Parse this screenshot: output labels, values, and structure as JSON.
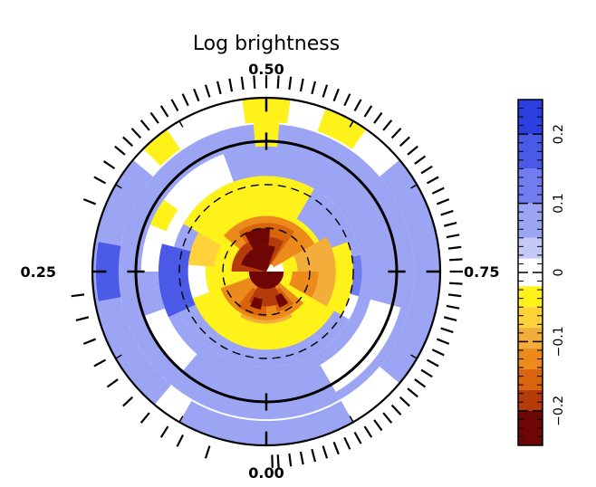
{
  "chart_data": {
    "type": "heatmap",
    "projection": "polar",
    "title": "Log brightness",
    "phase_labels": [
      {
        "text": "0.50",
        "angle_deg": 90
      },
      {
        "text": "0.25",
        "angle_deg": 180
      },
      {
        "text": "0.75",
        "angle_deg": 0
      },
      {
        "text": "0.00",
        "angle_deg": 270
      }
    ],
    "colorbar": {
      "orientation": "vertical",
      "position": "right",
      "range": [
        -0.25,
        0.25
      ],
      "tick_labels": [
        "0.2",
        "0.1",
        "0",
        "−0.1",
        "−0.2"
      ],
      "tick_values": [
        0.2,
        0.1,
        0.0,
        -0.1,
        -0.2
      ],
      "levels": [
        {
          "lo": 0.2,
          "hi": 0.25,
          "color": "#2b3fe0"
        },
        {
          "lo": 0.15,
          "hi": 0.2,
          "color": "#4a5ae6"
        },
        {
          "lo": 0.1,
          "hi": 0.15,
          "color": "#6f7df0"
        },
        {
          "lo": 0.05,
          "hi": 0.1,
          "color": "#9ca5f3"
        },
        {
          "lo": 0.02,
          "hi": 0.05,
          "color": "#c4c9f8"
        },
        {
          "lo": -0.02,
          "hi": 0.02,
          "color": "#ffffff"
        },
        {
          "lo": -0.05,
          "hi": -0.02,
          "color": "#fff21a"
        },
        {
          "lo": -0.08,
          "hi": -0.05,
          "color": "#ffd23a"
        },
        {
          "lo": -0.11,
          "hi": -0.08,
          "color": "#f2ad3a"
        },
        {
          "lo": -0.14,
          "hi": -0.11,
          "color": "#ec8a1c"
        },
        {
          "lo": -0.17,
          "hi": -0.14,
          "color": "#d8640e"
        },
        {
          "lo": -0.2,
          "hi": -0.17,
          "color": "#b53c0a"
        },
        {
          "lo": -0.25,
          "hi": -0.2,
          "color": "#6e0606"
        }
      ]
    },
    "latitude_circles_deg": [
      60,
      30,
      0
    ],
    "regions": [
      {
        "value": 0.08,
        "r0": 0.55,
        "r1": 0.95,
        "th0": 0,
        "th1": 360
      },
      {
        "value": 0.08,
        "r0": 0.3,
        "r1": 0.55,
        "th0": 200,
        "th1": 330
      },
      {
        "value": 0.08,
        "r0": 0.3,
        "r1": 0.55,
        "th0": 10,
        "th1": 170
      },
      {
        "value": 0.0,
        "r0": 0.55,
        "r1": 0.72,
        "th0": 110,
        "th1": 180
      },
      {
        "value": 0.0,
        "r0": 0.62,
        "r1": 0.8,
        "th0": 300,
        "th1": 345
      },
      {
        "value": 0.0,
        "r0": 0.62,
        "r1": 0.75,
        "th0": 200,
        "th1": 230
      },
      {
        "value": 0.0,
        "r0": 0.85,
        "r1": 1.0,
        "th0": 0,
        "th1": 360
      },
      {
        "value": 0.08,
        "r0": 0.85,
        "r1": 1.0,
        "th0": 140,
        "th1": 230
      },
      {
        "value": 0.08,
        "r0": 0.85,
        "r1": 1.0,
        "th0": 320,
        "th1": 360
      },
      {
        "value": 0.08,
        "r0": 0.85,
        "r1": 1.0,
        "th0": 0,
        "th1": 40
      },
      {
        "value": 0.08,
        "r0": 0.86,
        "r1": 1.0,
        "th0": 240,
        "th1": 300
      },
      {
        "value": -0.04,
        "r0": 0.86,
        "r1": 1.0,
        "th0": 82,
        "th1": 98
      },
      {
        "value": -0.04,
        "r0": 0.86,
        "r1": 1.0,
        "th0": 55,
        "th1": 70
      },
      {
        "value": -0.04,
        "r0": 0.86,
        "r1": 1.0,
        "th0": 125,
        "th1": 135
      },
      {
        "value": -0.04,
        "r0": 0.72,
        "r1": 0.86,
        "th0": 85,
        "th1": 95
      },
      {
        "value": -0.04,
        "r0": 0.62,
        "r1": 0.72,
        "th0": 145,
        "th1": 158
      },
      {
        "value": 0.16,
        "r0": 0.45,
        "r1": 0.62,
        "th0": 165,
        "th1": 205
      },
      {
        "value": 0.12,
        "r0": 0.4,
        "r1": 0.55,
        "th0": 345,
        "th1": 360
      },
      {
        "value": 0.12,
        "r0": 0.4,
        "r1": 0.55,
        "th0": 0,
        "th1": 10
      },
      {
        "value": 0.16,
        "r0": 0.85,
        "r1": 0.98,
        "th0": 170,
        "th1": 190
      },
      {
        "value": -0.04,
        "r0": 0.2,
        "r1": 0.55,
        "th0": 60,
        "th1": 150
      },
      {
        "value": -0.04,
        "r0": 0.15,
        "r1": 0.45,
        "th0": 200,
        "th1": 340
      },
      {
        "value": -0.04,
        "r0": 0.25,
        "r1": 0.5,
        "th0": 330,
        "th1": 360
      },
      {
        "value": -0.04,
        "r0": 0.25,
        "r1": 0.5,
        "th0": 0,
        "th1": 20
      },
      {
        "value": -0.04,
        "r0": 0.1,
        "r1": 0.35,
        "th0": 0,
        "th1": 360
      },
      {
        "value": -0.06,
        "r0": 0.3,
        "r1": 0.45,
        "th0": 150,
        "th1": 175
      },
      {
        "value": -0.09,
        "r0": 0.18,
        "r1": 0.4,
        "th0": 330,
        "th1": 360
      },
      {
        "value": -0.09,
        "r0": 0.18,
        "r1": 0.4,
        "th0": 0,
        "th1": 30
      },
      {
        "value": -0.09,
        "r0": 0.15,
        "r1": 0.3,
        "th0": 240,
        "th1": 300
      },
      {
        "value": -0.12,
        "r0": 0.05,
        "r1": 0.32,
        "th0": 30,
        "th1": 140
      },
      {
        "value": -0.12,
        "r0": 0.08,
        "r1": 0.28,
        "th0": 200,
        "th1": 320
      },
      {
        "value": -0.12,
        "r0": 0.15,
        "r1": 0.3,
        "th0": 330,
        "th1": 360
      },
      {
        "value": -0.15,
        "r0": 0.05,
        "r1": 0.28,
        "th0": 55,
        "th1": 125
      },
      {
        "value": -0.15,
        "r0": 0.12,
        "r1": 0.26,
        "th0": 230,
        "th1": 270
      },
      {
        "value": -0.15,
        "r0": 0.12,
        "r1": 0.24,
        "th0": 285,
        "th1": 310
      },
      {
        "value": -0.18,
        "r0": 0.0,
        "r1": 0.2,
        "th0": 60,
        "th1": 180
      },
      {
        "value": -0.18,
        "r0": 0.05,
        "r1": 0.2,
        "th0": 240,
        "th1": 300
      },
      {
        "value": -0.22,
        "r0": 0.0,
        "r1": 0.15,
        "th0": 70,
        "th1": 165
      },
      {
        "value": -0.22,
        "r0": 0.0,
        "r1": 0.1,
        "th0": 180,
        "th1": 360
      },
      {
        "value": -0.22,
        "r0": 0.15,
        "r1": 0.25,
        "th0": 85,
        "th1": 120
      },
      {
        "value": -0.22,
        "r0": 0.16,
        "r1": 0.22,
        "th0": 245,
        "th1": 262
      },
      {
        "value": -0.22,
        "r0": 0.15,
        "r1": 0.22,
        "th0": 290,
        "th1": 305
      }
    ],
    "observation_phases": [
      0.05,
      0.075,
      0.09,
      0.11,
      0.13,
      0.15,
      0.17,
      0.19,
      0.21,
      0.23,
      0.31,
      0.33,
      0.345,
      0.36,
      0.37,
      0.38,
      0.39,
      0.4,
      0.41,
      0.42,
      0.43,
      0.44,
      0.45,
      0.46,
      0.47,
      0.48,
      0.49,
      0.5,
      0.51,
      0.52,
      0.53,
      0.54,
      0.55,
      0.56,
      0.57,
      0.58,
      0.59,
      0.6,
      0.61,
      0.62,
      0.63,
      0.64,
      0.65,
      0.66,
      0.67,
      0.68,
      0.69,
      0.7,
      0.71,
      0.72,
      0.73,
      0.74,
      0.75,
      0.76,
      0.77,
      0.78,
      0.79,
      0.8,
      0.81,
      0.82,
      0.83,
      0.84,
      0.85,
      0.86,
      0.87,
      0.88,
      0.89,
      0.9,
      0.91,
      0.92,
      0.93,
      0.94,
      0.95,
      0.96,
      0.97,
      0.98,
      0.99,
      0.995
    ]
  }
}
